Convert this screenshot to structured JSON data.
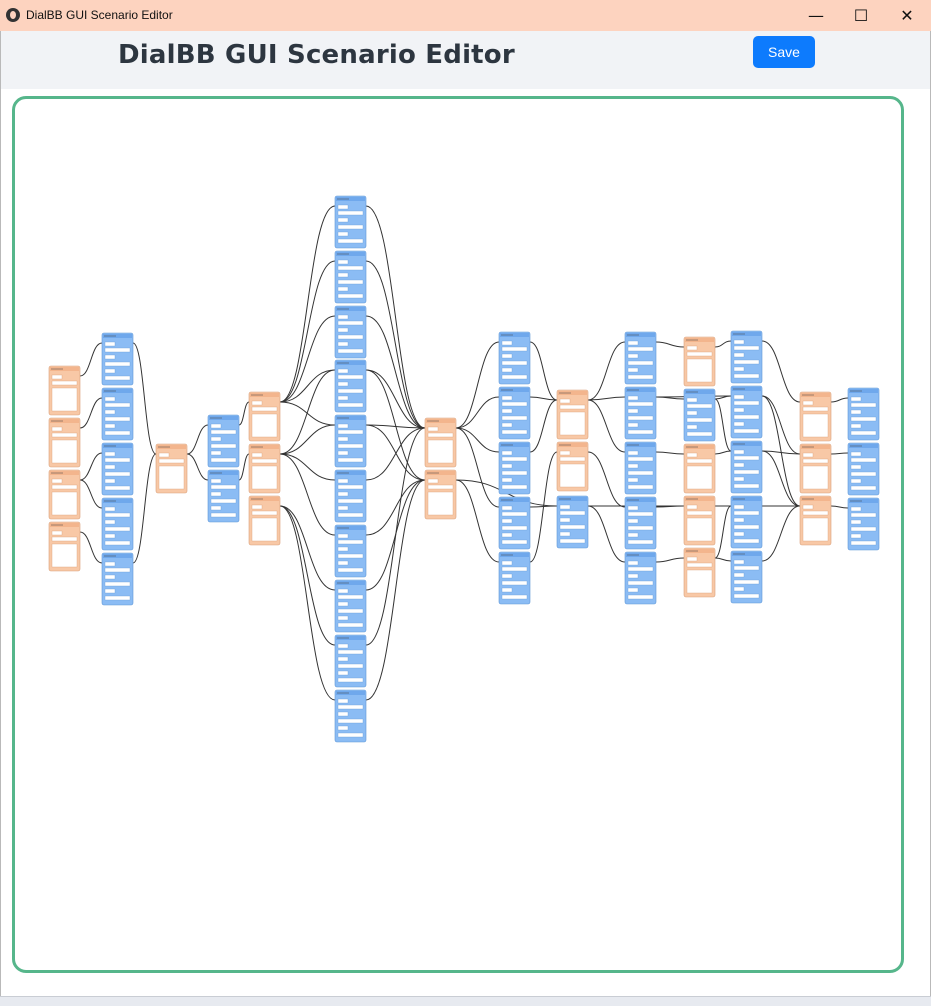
{
  "window": {
    "title": "DialBB GUI Scenario Editor",
    "controls": {
      "minimize": "—",
      "maximize": "☐",
      "close": "✕"
    }
  },
  "header": {
    "title": "DialBB GUI Scenario Editor",
    "save_label": "Save"
  },
  "colors": {
    "system_node": "#f8c8a6",
    "user_node": "#8bbcf4",
    "edge": "#333333",
    "canvas_border": "#56b68b",
    "save_button": "#0d7bfd"
  },
  "graph": {
    "node_kinds": [
      "system-utterance-node",
      "user-utterance-node"
    ],
    "note": ""
  }
}
